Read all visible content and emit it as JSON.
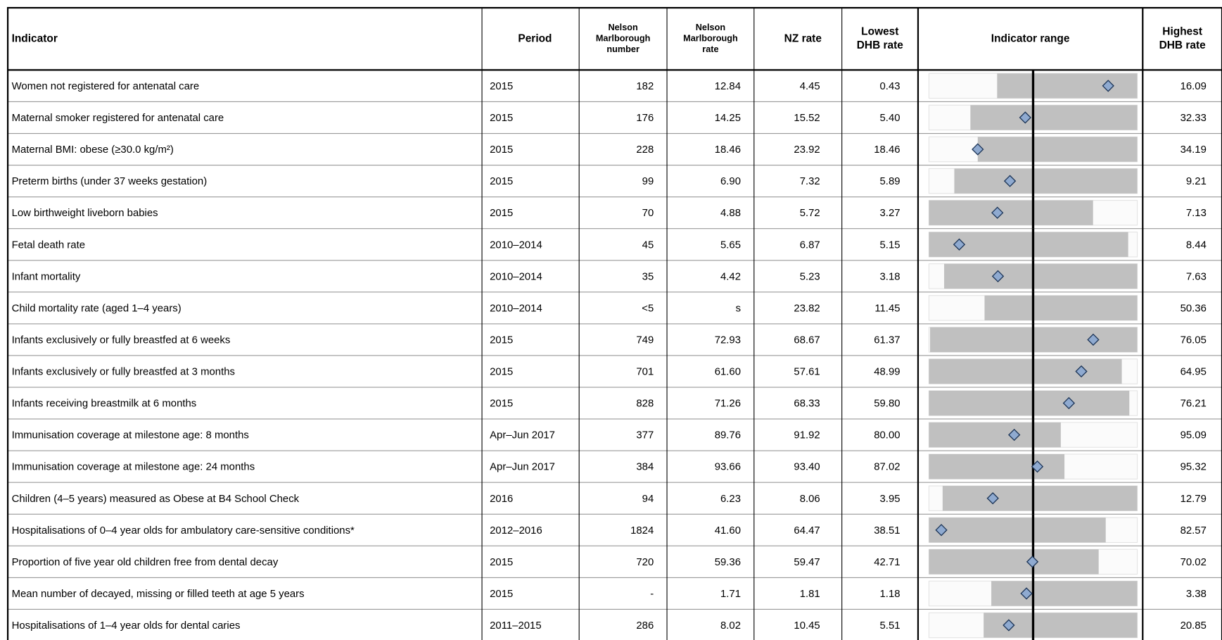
{
  "table": {
    "headers": {
      "indicator": [
        "Indicator"
      ],
      "period": [
        "Period"
      ],
      "number": [
        "Nelson",
        "Marlborough",
        "number"
      ],
      "rate": [
        "Nelson",
        "Marlborough",
        "rate"
      ],
      "nz": [
        "NZ rate"
      ],
      "low": [
        "Lowest",
        "DHB rate"
      ],
      "range": [
        "Indicator range"
      ],
      "high": [
        "Highest",
        "DHB rate"
      ]
    },
    "rows": [
      {
        "indicator": "Women not registered for antenatal care",
        "period": "2015",
        "number": "182",
        "rate": "12.84",
        "nz": "4.45",
        "low": "0.43",
        "high": "16.09"
      },
      {
        "indicator": "Maternal smoker registered for antenatal care",
        "period": "2015",
        "number": "176",
        "rate": "14.25",
        "nz": "15.52",
        "low": "5.40",
        "high": "32.33"
      },
      {
        "indicator": "Maternal BMI: obese (≥30.0 kg/m²)",
        "period": "2015",
        "number": "228",
        "rate": "18.46",
        "nz": "23.92",
        "low": "18.46",
        "high": "34.19"
      },
      {
        "indicator": "Preterm births (under 37 weeks gestation)",
        "period": "2015",
        "number": "99",
        "rate": "6.90",
        "nz": "7.32",
        "low": "5.89",
        "high": "9.21"
      },
      {
        "indicator": "Low birthweight liveborn babies",
        "period": "2015",
        "number": "70",
        "rate": "4.88",
        "nz": "5.72",
        "low": "3.27",
        "high": "7.13"
      },
      {
        "indicator": "Fetal death rate",
        "period": "2010–2014",
        "number": "45",
        "rate": "5.65",
        "nz": "6.87",
        "low": "5.15",
        "high": "8.44"
      },
      {
        "indicator": "Infant mortality",
        "period": "2010–2014",
        "number": "35",
        "rate": "4.42",
        "nz": "5.23",
        "low": "3.18",
        "high": "7.63"
      },
      {
        "indicator": "Child mortality rate (aged 1–4 years)",
        "period": "2010–2014",
        "number": "<5",
        "rate": "s",
        "nz": "23.82",
        "low": "11.45",
        "high": "50.36"
      },
      {
        "indicator": "Infants exclusively or fully breastfed at 6 weeks",
        "period": "2015",
        "number": "749",
        "rate": "72.93",
        "nz": "68.67",
        "low": "61.37",
        "high": "76.05"
      },
      {
        "indicator": "Infants exclusively or fully breastfed at 3 months",
        "period": "2015",
        "number": "701",
        "rate": "61.60",
        "nz": "57.61",
        "low": "48.99",
        "high": "64.95"
      },
      {
        "indicator": "Infants receiving breastmilk at 6 months",
        "period": "2015",
        "number": "828",
        "rate": "71.26",
        "nz": "68.33",
        "low": "59.80",
        "high": "76.21"
      },
      {
        "indicator": "Immunisation coverage at milestone age: 8 months",
        "period": "Apr–Jun 2017",
        "number": "377",
        "rate": "89.76",
        "nz": "91.92",
        "low": "80.00",
        "high": "95.09"
      },
      {
        "indicator": "Immunisation coverage at milestone age: 24 months",
        "period": "Apr–Jun 2017",
        "number": "384",
        "rate": "93.66",
        "nz": "93.40",
        "low": "87.02",
        "high": "95.32"
      },
      {
        "indicator": "Children (4–5 years) measured as Obese at B4 School Check",
        "period": "2016",
        "number": "94",
        "rate": "6.23",
        "nz": "8.06",
        "low": "3.95",
        "high": "12.79"
      },
      {
        "indicator": "Hospitalisations of 0–4 year olds for ambulatory care-sensitive conditions*",
        "period": "2012–2016",
        "number": "1824",
        "rate": "41.60",
        "nz": "64.47",
        "low": "38.51",
        "high": "82.57"
      },
      {
        "indicator": "Proportion of five year old children free from dental decay",
        "period": "2015",
        "number": "720",
        "rate": "59.36",
        "nz": "59.47",
        "low": "42.71",
        "high": "70.02"
      },
      {
        "indicator": "Mean number of decayed, missing or filled teeth at age 5 years",
        "period": "2015",
        "number": "-",
        "rate": "1.71",
        "nz": "1.81",
        "low": "1.18",
        "high": "3.38"
      },
      {
        "indicator": "Hospitalisations of 1–4 year olds for dental caries",
        "period": "2011–2015",
        "number": "286",
        "rate": "8.02",
        "nz": "10.45",
        "low": "5.51",
        "high": "20.85"
      }
    ]
  }
}
